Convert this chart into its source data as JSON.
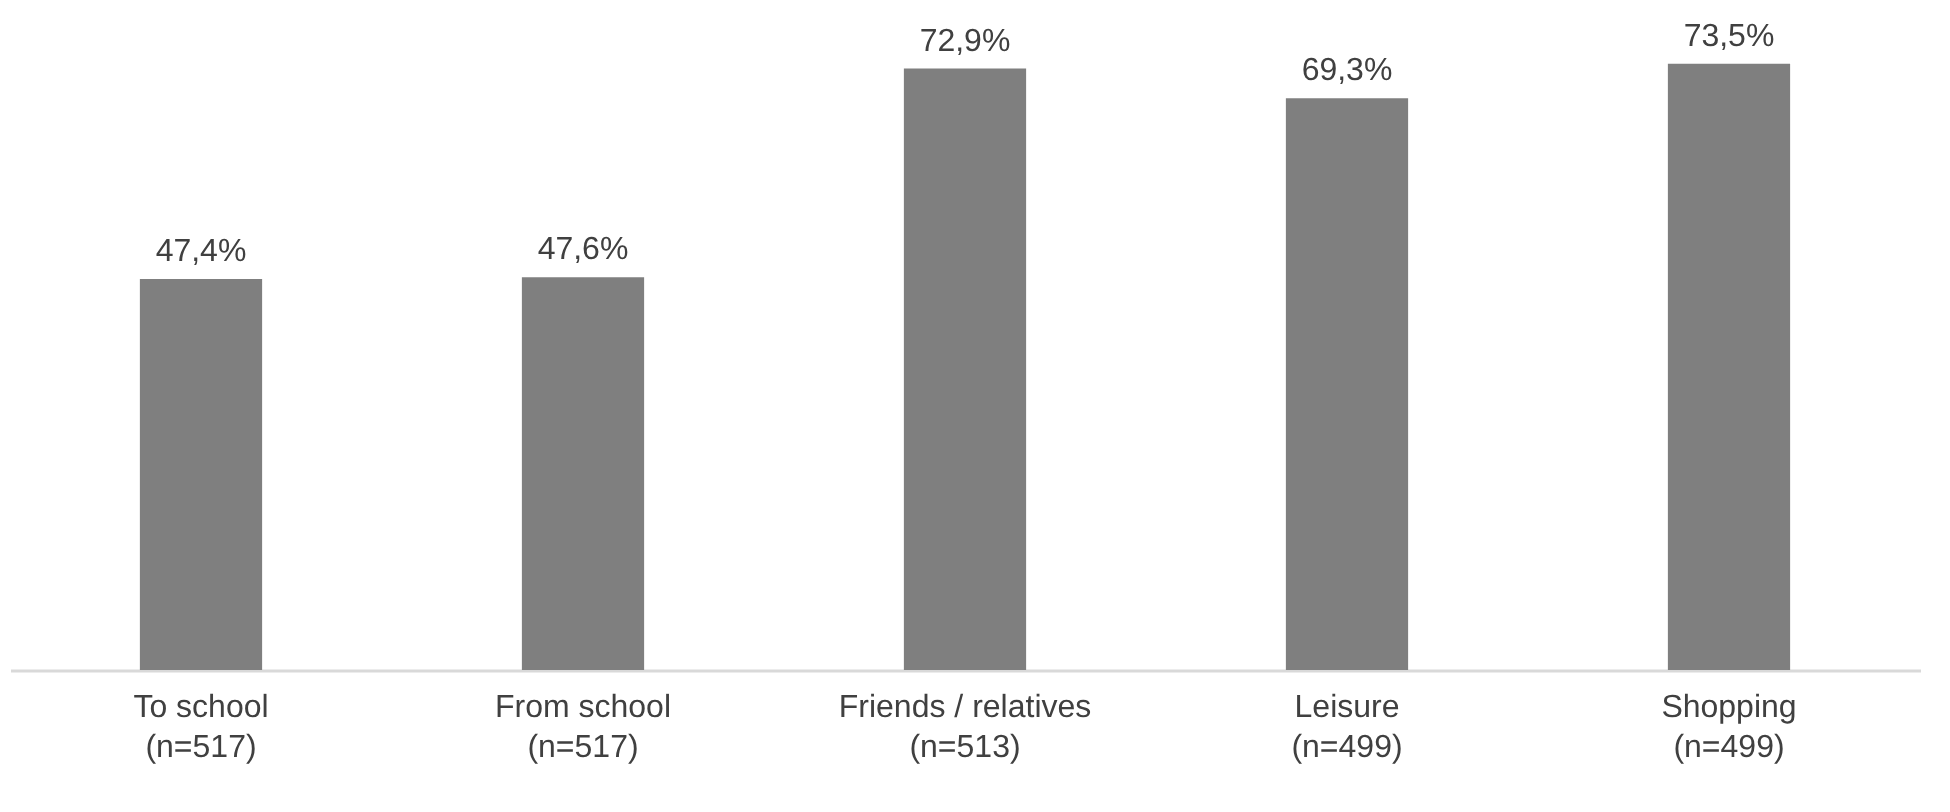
{
  "chart_data": {
    "type": "bar",
    "categories": [
      "To school\n(n=517)",
      "From school\n(n=517)",
      "Friends / relatives\n(n=513)",
      "Leisure\n(n=499)",
      "Shopping\n(n=499)"
    ],
    "values": [
      47.4,
      47.6,
      72.9,
      69.3,
      73.5
    ],
    "value_labels": [
      "47,4%",
      "47,6%",
      "72,9%",
      "69,3%",
      "73,5%"
    ],
    "color": "#7f7f7f"
  }
}
